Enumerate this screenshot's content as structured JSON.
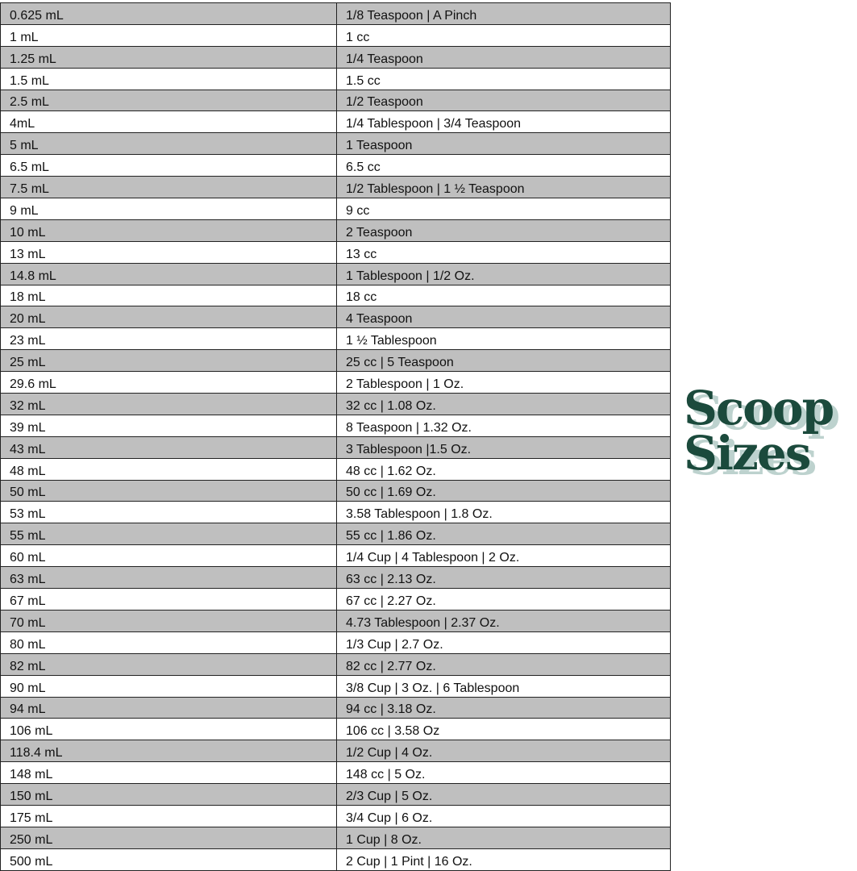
{
  "title": {
    "line1": "Scoop",
    "line2": "Sizes",
    "color": "#1b4a3c",
    "shadow_color": "#bdd2ce"
  },
  "rows": [
    [
      "0.625 mL",
      "1/8 Teaspoon | A Pinch"
    ],
    [
      "1 mL",
      "1 cc"
    ],
    [
      "1.25 mL",
      "1/4 Teaspoon"
    ],
    [
      "1.5 mL",
      "1.5 cc"
    ],
    [
      "2.5 mL",
      "1/2 Teaspoon"
    ],
    [
      "4mL",
      "1/4 Tablespoon | 3/4 Teaspoon"
    ],
    [
      "5 mL",
      "1 Teaspoon"
    ],
    [
      "6.5 mL",
      "6.5 cc"
    ],
    [
      "7.5 mL",
      "1/2 Tablespoon | 1 ½ Teaspoon"
    ],
    [
      "9 mL",
      "9 cc"
    ],
    [
      "10 mL",
      "2 Teaspoon"
    ],
    [
      "13 mL",
      "13 cc"
    ],
    [
      "14.8 mL",
      "1 Tablespoon | 1/2 Oz."
    ],
    [
      "18 mL",
      "18 cc"
    ],
    [
      "20 mL",
      "4 Teaspoon"
    ],
    [
      "23 mL",
      "1 ½ Tablespoon"
    ],
    [
      "25 mL",
      "25 cc | 5 Teaspoon"
    ],
    [
      "29.6 mL",
      "2 Tablespoon | 1 Oz."
    ],
    [
      "32 mL",
      "32 cc | 1.08 Oz."
    ],
    [
      "39 mL",
      "8 Teaspoon | 1.32 Oz."
    ],
    [
      "43 mL",
      "3 Tablespoon |1.5 Oz."
    ],
    [
      "48 mL",
      "48 cc | 1.62 Oz."
    ],
    [
      "50 mL",
      "50 cc | 1.69 Oz."
    ],
    [
      "53 mL",
      "3.58 Tablespoon | 1.8 Oz."
    ],
    [
      "55 mL",
      "55 cc | 1.86 Oz."
    ],
    [
      "60 mL",
      "1/4 Cup | 4 Tablespoon | 2 Oz."
    ],
    [
      "63 mL",
      "63 cc | 2.13 Oz."
    ],
    [
      "67 mL",
      "67 cc | 2.27 Oz."
    ],
    [
      "70 mL",
      "4.73 Tablespoon | 2.37 Oz."
    ],
    [
      "80 mL",
      "1/3 Cup | 2.7 Oz."
    ],
    [
      "82 mL",
      "82 cc | 2.77 Oz."
    ],
    [
      "90 mL",
      "3/8 Cup | 3 Oz. | 6 Tablespoon"
    ],
    [
      "94 mL",
      "94 cc | 3.18 Oz."
    ],
    [
      "106 mL",
      "106 cc | 3.58 Oz"
    ],
    [
      "118.4 mL",
      "1/2 Cup | 4 Oz."
    ],
    [
      "148 mL",
      "148 cc | 5 Oz."
    ],
    [
      "150 mL",
      "2/3 Cup | 5 Oz."
    ],
    [
      "175 mL",
      "3/4 Cup | 6 Oz."
    ],
    [
      "250 mL",
      "1 Cup | 8 Oz."
    ],
    [
      "500 mL",
      "2 Cup | 1 Pint | 16 Oz."
    ]
  ]
}
